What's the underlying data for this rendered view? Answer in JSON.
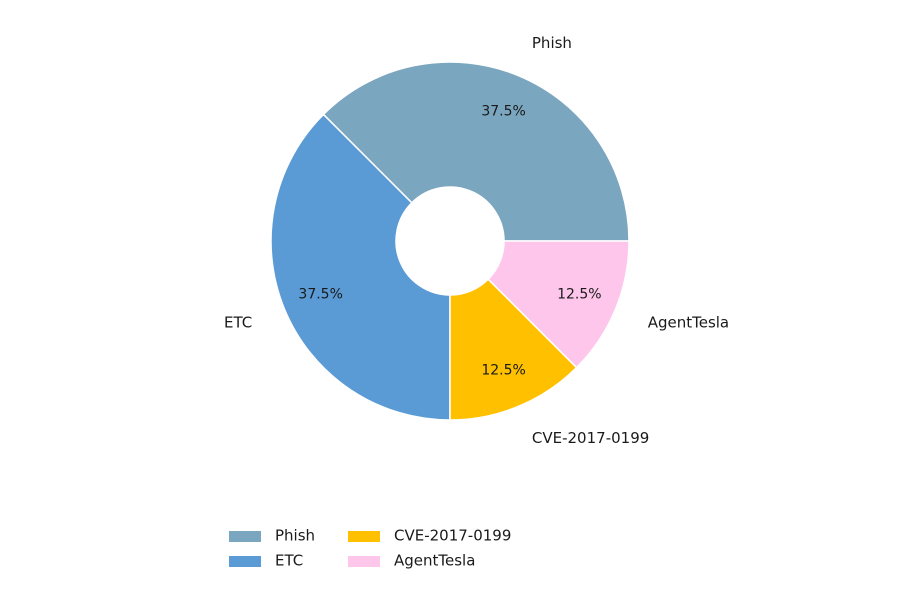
{
  "chart_data": {
    "type": "pie",
    "subtype": "donut",
    "title": "",
    "slices": [
      {
        "label": "Phish",
        "value": 37.5,
        "pct_label": "37.5%",
        "color": "#7BA6BF"
      },
      {
        "label": "ETC",
        "value": 37.5,
        "pct_label": "37.5%",
        "color": "#5B9BD5"
      },
      {
        "label": "CVE-2017-0199",
        "value": 12.5,
        "pct_label": "12.5%",
        "color": "#FFC000"
      },
      {
        "label": "AgentTesla",
        "value": 12.5,
        "pct_label": "12.5%",
        "color": "#FFC6EC"
      }
    ],
    "start_angle_deg": 0,
    "direction": "counterclockwise",
    "legend": {
      "placement": "bottom-center",
      "columns": 3,
      "entries": [
        "Phish",
        "ETC",
        "CVE-2017-0199",
        "AgentTesla"
      ]
    }
  }
}
